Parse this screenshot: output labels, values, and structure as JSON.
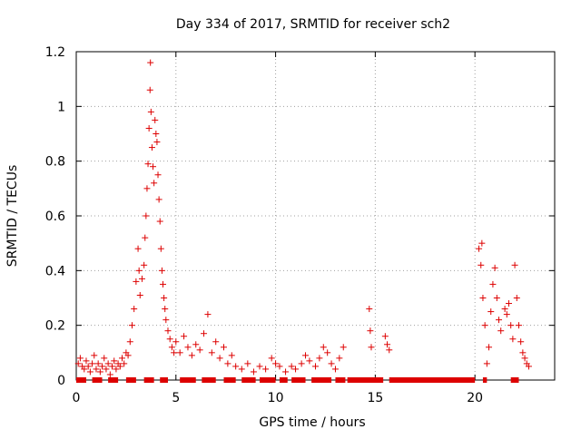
{
  "chart_data": {
    "type": "scatter",
    "title": "Day 334 of 2017, SRMTID for receiver sch2",
    "xlabel": "GPS time / hours",
    "ylabel": "SRMTID / TECUs",
    "xlim": [
      0,
      24
    ],
    "ylim": [
      0,
      1.2
    ],
    "xticks": [
      0,
      5,
      10,
      15,
      20
    ],
    "yticks": [
      0,
      0.2,
      0.4,
      0.6,
      0.8,
      1.0,
      1.2
    ],
    "xtick_labels": [
      "0",
      "5",
      "10",
      "15",
      "20"
    ],
    "ytick_labels": [
      "0",
      "0.2",
      "0.4",
      "0.6",
      "0.8",
      "1",
      "1.2"
    ],
    "grid": true,
    "grid_style": "dotted",
    "marker": "plus",
    "color": "#dd0000",
    "series": [
      {
        "name": "SRMTID",
        "points": [
          [
            0.1,
            0.06
          ],
          [
            0.2,
            0.08
          ],
          [
            0.3,
            0.05
          ],
          [
            0.4,
            0.04
          ],
          [
            0.5,
            0.07
          ],
          [
            0.6,
            0.05
          ],
          [
            0.7,
            0.03
          ],
          [
            0.8,
            0.06
          ],
          [
            0.9,
            0.09
          ],
          [
            1.0,
            0.04
          ],
          [
            1.1,
            0.06
          ],
          [
            1.2,
            0.03
          ],
          [
            1.3,
            0.05
          ],
          [
            1.4,
            0.08
          ],
          [
            1.5,
            0.04
          ],
          [
            1.6,
            0.06
          ],
          [
            1.7,
            0.02
          ],
          [
            1.8,
            0.05
          ],
          [
            1.9,
            0.07
          ],
          [
            2.0,
            0.04
          ],
          [
            2.1,
            0.06
          ],
          [
            2.2,
            0.05
          ],
          [
            2.3,
            0.08
          ],
          [
            2.4,
            0.06
          ],
          [
            2.5,
            0.1
          ],
          [
            2.6,
            0.09
          ],
          [
            2.7,
            0.14
          ],
          [
            2.8,
            0.2
          ],
          [
            2.9,
            0.26
          ],
          [
            3.0,
            0.36
          ],
          [
            3.1,
            0.48
          ],
          [
            3.15,
            0.4
          ],
          [
            3.2,
            0.31
          ],
          [
            3.3,
            0.37
          ],
          [
            3.4,
            0.42
          ],
          [
            3.45,
            0.52
          ],
          [
            3.5,
            0.6
          ],
          [
            3.55,
            0.7
          ],
          [
            3.6,
            0.79
          ],
          [
            3.65,
            0.92
          ],
          [
            3.7,
            1.06
          ],
          [
            3.72,
            1.16
          ],
          [
            3.75,
            0.98
          ],
          [
            3.8,
            0.85
          ],
          [
            3.85,
            0.78
          ],
          [
            3.9,
            0.72
          ],
          [
            3.95,
            0.95
          ],
          [
            4.0,
            0.9
          ],
          [
            4.05,
            0.87
          ],
          [
            4.1,
            0.75
          ],
          [
            4.15,
            0.66
          ],
          [
            4.2,
            0.58
          ],
          [
            4.25,
            0.48
          ],
          [
            4.3,
            0.4
          ],
          [
            4.35,
            0.35
          ],
          [
            4.4,
            0.3
          ],
          [
            4.45,
            0.26
          ],
          [
            4.5,
            0.22
          ],
          [
            4.6,
            0.18
          ],
          [
            4.7,
            0.15
          ],
          [
            4.8,
            0.12
          ],
          [
            4.9,
            0.1
          ],
          [
            5.0,
            0.14
          ],
          [
            5.2,
            0.1
          ],
          [
            5.4,
            0.16
          ],
          [
            5.6,
            0.12
          ],
          [
            5.8,
            0.09
          ],
          [
            6.0,
            0.13
          ],
          [
            6.2,
            0.11
          ],
          [
            6.4,
            0.17
          ],
          [
            6.6,
            0.24
          ],
          [
            6.8,
            0.1
          ],
          [
            7.0,
            0.14
          ],
          [
            7.2,
            0.08
          ],
          [
            7.4,
            0.12
          ],
          [
            7.6,
            0.06
          ],
          [
            7.8,
            0.09
          ],
          [
            8.0,
            0.05
          ],
          [
            8.3,
            0.04
          ],
          [
            8.6,
            0.06
          ],
          [
            8.9,
            0.03
          ],
          [
            9.2,
            0.05
          ],
          [
            9.5,
            0.04
          ],
          [
            9.8,
            0.08
          ],
          [
            10.0,
            0.06
          ],
          [
            10.2,
            0.05
          ],
          [
            10.5,
            0.03
          ],
          [
            10.8,
            0.05
          ],
          [
            11.0,
            0.04
          ],
          [
            11.3,
            0.06
          ],
          [
            11.5,
            0.09
          ],
          [
            11.7,
            0.07
          ],
          [
            12.0,
            0.05
          ],
          [
            12.2,
            0.08
          ],
          [
            12.4,
            0.12
          ],
          [
            12.6,
            0.1
          ],
          [
            12.8,
            0.06
          ],
          [
            13.0,
            0.04
          ],
          [
            13.2,
            0.08
          ],
          [
            13.4,
            0.12
          ],
          [
            14.7,
            0.26
          ],
          [
            14.75,
            0.18
          ],
          [
            14.8,
            0.12
          ],
          [
            15.5,
            0.16
          ],
          [
            15.6,
            0.13
          ],
          [
            15.7,
            0.11
          ],
          [
            20.2,
            0.48
          ],
          [
            20.3,
            0.42
          ],
          [
            20.35,
            0.5
          ],
          [
            20.4,
            0.3
          ],
          [
            20.5,
            0.2
          ],
          [
            20.6,
            0.06
          ],
          [
            20.7,
            0.12
          ],
          [
            20.8,
            0.25
          ],
          [
            20.9,
            0.35
          ],
          [
            21.0,
            0.41
          ],
          [
            21.1,
            0.3
          ],
          [
            21.2,
            0.22
          ],
          [
            21.3,
            0.18
          ],
          [
            21.5,
            0.26
          ],
          [
            21.6,
            0.24
          ],
          [
            21.7,
            0.28
          ],
          [
            21.8,
            0.2
          ],
          [
            21.9,
            0.15
          ],
          [
            22.0,
            0.42
          ],
          [
            22.1,
            0.3
          ],
          [
            22.2,
            0.2
          ],
          [
            22.3,
            0.14
          ],
          [
            22.4,
            0.1
          ],
          [
            22.5,
            0.08
          ],
          [
            22.6,
            0.06
          ],
          [
            22.7,
            0.05
          ]
        ],
        "zero_runs": [
          [
            0.0,
            0.5
          ],
          [
            0.8,
            1.3
          ],
          [
            1.6,
            2.1
          ],
          [
            2.5,
            3.0
          ],
          [
            3.4,
            3.9
          ],
          [
            4.2,
            4.6
          ],
          [
            5.2,
            6.0
          ],
          [
            6.3,
            7.0
          ],
          [
            7.4,
            8.0
          ],
          [
            8.3,
            9.0
          ],
          [
            9.2,
            10.0
          ],
          [
            10.2,
            10.6
          ],
          [
            10.8,
            11.5
          ],
          [
            11.8,
            12.8
          ],
          [
            13.0,
            13.5
          ],
          [
            13.6,
            15.4
          ],
          [
            15.7,
            20.0
          ],
          [
            20.4,
            20.6
          ],
          [
            21.8,
            22.2
          ]
        ]
      }
    ]
  }
}
